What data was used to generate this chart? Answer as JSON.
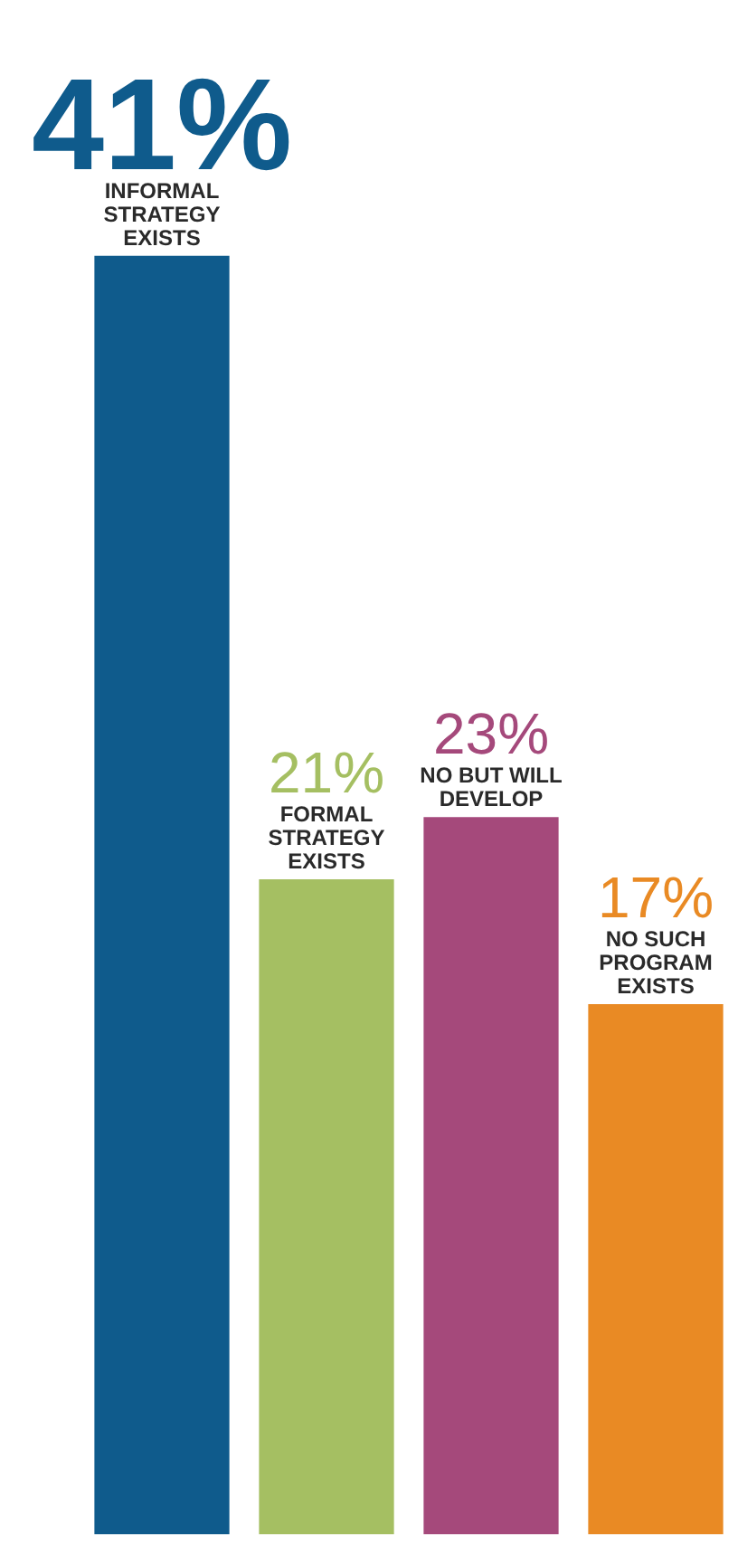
{
  "chart_data": {
    "type": "bar",
    "categories": [
      "INFORMAL STRATEGY EXISTS",
      "FORMAL STRATEGY EXISTS",
      "NO BUT WILL DEVELOP",
      "NO SUCH PROGRAM EXISTS"
    ],
    "values": [
      41,
      21,
      23,
      17
    ],
    "colors": [
      "#0f5b8c",
      "#a5bf62",
      "#a5497b",
      "#e98a24"
    ],
    "value_labels": [
      "41%",
      "21%",
      "23%",
      "17%"
    ],
    "tick_labels": false
  }
}
